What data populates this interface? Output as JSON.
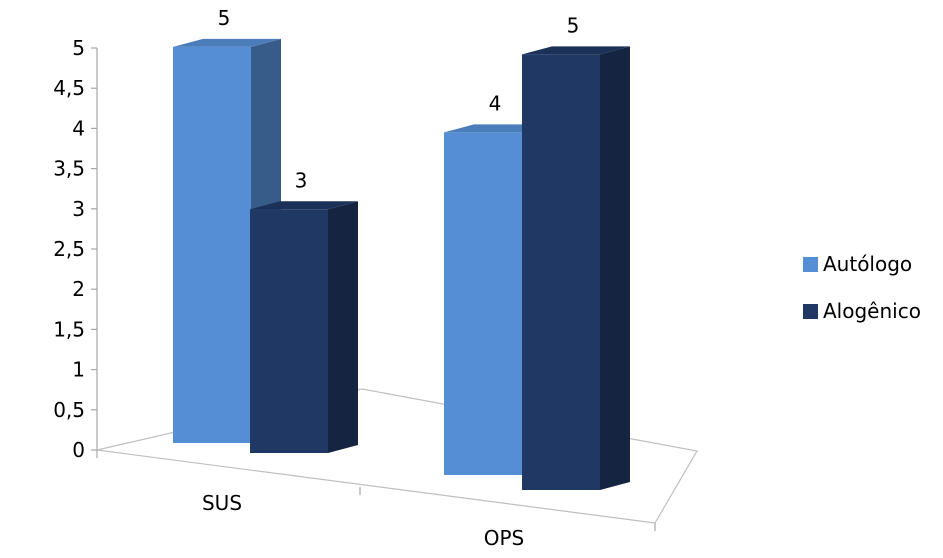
{
  "chart_data": {
    "type": "bar",
    "style": "3d-clustered-column",
    "categories": [
      "SUS",
      "OPS"
    ],
    "series": [
      {
        "name": "Autólogo",
        "values": [
          5,
          4
        ],
        "labels": [
          "5",
          "4"
        ],
        "color": "#558ED5"
      },
      {
        "name": "Alogênico",
        "values": [
          3,
          5
        ],
        "labels": [
          "3",
          "5"
        ],
        "color": "#1F3864"
      }
    ],
    "y_ticks": [
      "0",
      "0,5",
      "1",
      "1,5",
      "2",
      "2,5",
      "3",
      "3,5",
      "4",
      "4,5",
      "5"
    ],
    "ylim": [
      0,
      5
    ],
    "grid": false,
    "legend_position": "right"
  }
}
